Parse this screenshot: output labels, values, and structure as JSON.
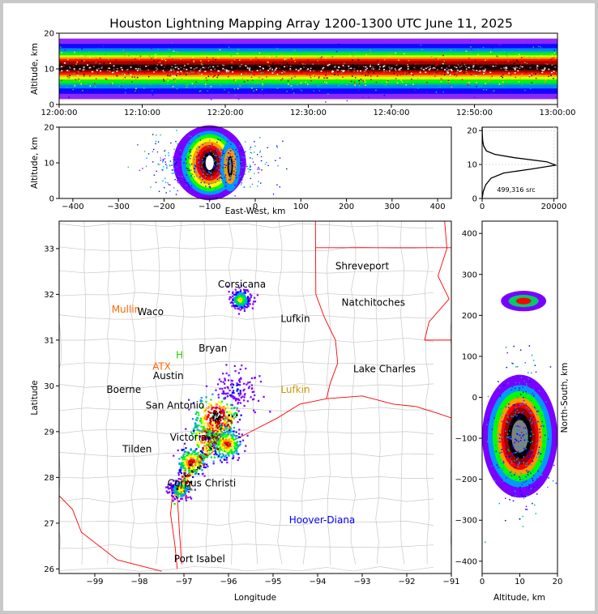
{
  "title": "Houston Lightning Mapping Array 1200-1300 UTC June 11, 2025",
  "colors": {
    "frame": "#c8c8c8",
    "density_scale": [
      "#ffffff",
      "#7a00ff",
      "#0000ff",
      "#0099ff",
      "#00cc66",
      "#00ff00",
      "#ffff00",
      "#ff9900",
      "#ff0000",
      "#990000",
      "#000000",
      "#808080",
      "#ffffff"
    ],
    "state_border": "#ff0000",
    "county_border": "#c0c0c0",
    "coast": "#ff0000",
    "label_normal": "#000000",
    "label_orange": "#ff6600",
    "label_blue": "#0000ff",
    "label_gold": "#cc9900",
    "label_green": "#33cc00"
  },
  "chart_data": [
    {
      "panel": "time-altitude",
      "type": "heatmap",
      "ylabel": "Altitude, km",
      "ylim": [
        0,
        20
      ],
      "yticks": [
        "0",
        "10",
        "20"
      ],
      "xlim": [
        "12:00:00",
        "13:00:00"
      ],
      "xticks": [
        "12:00:00",
        "12:10:00",
        "12:20:00",
        "12:30:00",
        "12:40:00",
        "12:50:00",
        "13:00:00"
      ],
      "source_altitude_peak_km": 10
    },
    {
      "panel": "east-west-altitude",
      "type": "heatmap",
      "xlabel": "East-West, km",
      "ylabel": "Altitude, km",
      "xlim": [
        -430,
        430
      ],
      "ylim": [
        0,
        20
      ],
      "xticks": [
        "−400",
        "−300",
        "−200",
        "−100",
        "0",
        "100",
        "200",
        "300",
        "400"
      ],
      "yticks": [
        "0",
        "10",
        "20"
      ],
      "cores": [
        {
          "x_km": -100,
          "alt_km": 10,
          "intensity": "max"
        },
        {
          "x_km": -55,
          "alt_km": 9,
          "intensity": "high"
        }
      ]
    },
    {
      "panel": "altitude-histogram",
      "type": "line",
      "annotation": "499,316 src",
      "xlim": [
        0,
        21000
      ],
      "ylim": [
        0,
        21
      ],
      "xticks": [
        "0",
        "20000"
      ],
      "yticks": [
        "0",
        "10",
        "20"
      ],
      "x": [
        0,
        300,
        1000,
        2500,
        6000,
        14000,
        20500,
        18000,
        9000,
        3500,
        1200,
        400,
        150,
        50,
        0
      ],
      "y": [
        0,
        2,
        4,
        6,
        7.5,
        8.7,
        9.8,
        10.8,
        12,
        13,
        14,
        15.5,
        17,
        19,
        21
      ]
    },
    {
      "panel": "plan-view-map",
      "type": "scatter",
      "xlabel": "Longitude",
      "ylabel": "Latitude",
      "xlim": [
        -99.8,
        -91
      ],
      "ylim": [
        25.9,
        33.6
      ],
      "xticks": [
        "−99",
        "−98",
        "−97",
        "−96",
        "−95",
        "−94",
        "−93",
        "−92",
        "−91"
      ],
      "yticks": [
        "26",
        "27",
        "28",
        "29",
        "30",
        "31",
        "32",
        "33"
      ],
      "clusters": [
        {
          "lon": -96.4,
          "lat": 28.9,
          "intensity": "max"
        },
        {
          "lon": -96.3,
          "lat": 29.35,
          "intensity": "max"
        },
        {
          "lon": -96.05,
          "lat": 28.75,
          "intensity": "high"
        },
        {
          "lon": -96.85,
          "lat": 28.35,
          "intensity": "high"
        },
        {
          "lon": -97.1,
          "lat": 27.75,
          "intensity": "medium"
        },
        {
          "lon": -95.75,
          "lat": 31.9,
          "intensity": "medium"
        },
        {
          "lon": -95.85,
          "lat": 29.95,
          "intensity": "low"
        }
      ]
    },
    {
      "panel": "altitude-north-south",
      "type": "heatmap",
      "xlabel": "Altitude, km",
      "ylabel": "North-South, km",
      "xlim": [
        0,
        20
      ],
      "ylim": [
        -430,
        430
      ],
      "xticks": [
        "0",
        "10",
        "20"
      ],
      "yticks": [
        "−400",
        "−300",
        "−200",
        "−100",
        "0",
        "100",
        "200",
        "300",
        "400"
      ]
    }
  ],
  "map_labels": [
    {
      "text": "Shreveport",
      "color": "label_normal"
    },
    {
      "text": "Corsicana",
      "color": "label_normal"
    },
    {
      "text": "Mullin",
      "color": "label_orange"
    },
    {
      "text": "Waco",
      "color": "label_normal"
    },
    {
      "text": "Natchitoches",
      "color": "label_normal"
    },
    {
      "text": "Lufkin",
      "color": "label_normal"
    },
    {
      "text": "ATX",
      "color": "label_orange"
    },
    {
      "text": "Austin",
      "color": "label_normal"
    },
    {
      "text": "Lake Charles",
      "color": "label_normal"
    },
    {
      "text": "Boerne",
      "color": "label_normal"
    },
    {
      "text": "Lufkin",
      "color": "label_gold"
    },
    {
      "text": "San Antonio",
      "color": "label_normal"
    },
    {
      "text": "Victoria",
      "color": "label_normal"
    },
    {
      "text": "Tilden",
      "color": "label_normal"
    },
    {
      "text": "Corpus Christi",
      "color": "label_normal"
    },
    {
      "text": "Hoover-Diana",
      "color": "label_blue"
    },
    {
      "text": "Port Isabel",
      "color": "label_normal"
    },
    {
      "text": "Bryan",
      "color": "label_normal"
    },
    {
      "text": "H",
      "color": "label_green"
    }
  ]
}
